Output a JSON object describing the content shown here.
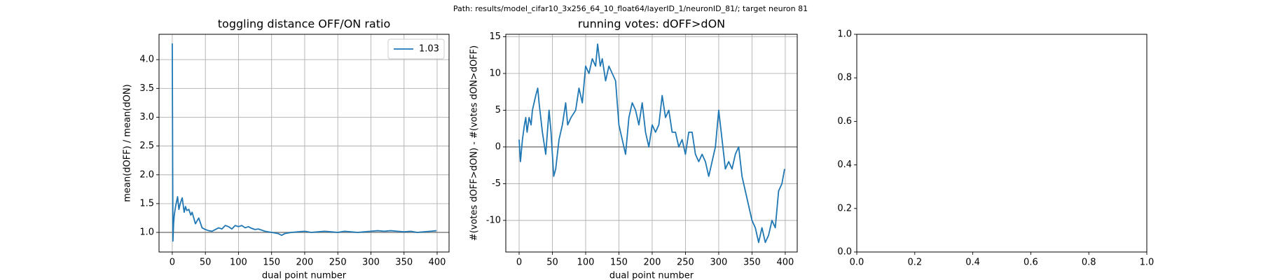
{
  "figure_title": "Path: results/model_cifar10_3x256_64_10_float64/layerID_1/neuronID_81/; target neuron 81",
  "chart_data": [
    {
      "type": "line",
      "title": "toggling distance OFF/ON ratio",
      "xlabel": "dual point number",
      "ylabel": "mean(dOFF) / mean(dON)",
      "x": [
        0,
        1,
        2,
        3,
        5,
        8,
        10,
        12,
        15,
        18,
        20,
        22,
        25,
        28,
        30,
        35,
        40,
        45,
        50,
        55,
        60,
        65,
        70,
        75,
        80,
        85,
        90,
        95,
        100,
        105,
        110,
        115,
        120,
        125,
        130,
        140,
        150,
        160,
        165,
        170,
        180,
        190,
        200,
        210,
        220,
        230,
        240,
        250,
        260,
        270,
        280,
        290,
        300,
        310,
        320,
        330,
        340,
        350,
        360,
        370,
        380,
        390,
        399
      ],
      "series": [
        {
          "name": "1.03",
          "color": "#1f77b4",
          "values": [
            4.28,
            0.85,
            1.15,
            1.3,
            1.45,
            1.62,
            1.4,
            1.5,
            1.6,
            1.35,
            1.45,
            1.38,
            1.4,
            1.3,
            1.35,
            1.15,
            1.25,
            1.08,
            1.05,
            1.03,
            1.02,
            1.05,
            1.08,
            1.06,
            1.12,
            1.1,
            1.06,
            1.12,
            1.1,
            1.12,
            1.08,
            1.1,
            1.07,
            1.05,
            1.06,
            1.02,
            1.0,
            0.98,
            0.95,
            0.98,
            1.0,
            1.01,
            1.02,
            1.0,
            1.01,
            1.02,
            1.01,
            1.0,
            1.02,
            1.01,
            1.0,
            1.01,
            1.02,
            1.03,
            1.02,
            1.03,
            1.02,
            1.01,
            1.02,
            1.0,
            1.01,
            1.02,
            1.03
          ]
        }
      ],
      "xlim": [
        -20,
        418
      ],
      "ylim": [
        0.66,
        4.44
      ],
      "xticks": [
        0,
        50,
        100,
        150,
        200,
        250,
        300,
        350,
        400
      ],
      "yticks": [
        {
          "value": 1,
          "label": "1.0"
        },
        {
          "value": 1.5,
          "label": "1.5"
        },
        {
          "value": 2,
          "label": "2.0"
        },
        {
          "value": 2.5,
          "label": "2.5"
        },
        {
          "value": 3,
          "label": "3.0"
        },
        {
          "value": 3.5,
          "label": "3.5"
        },
        {
          "value": 4,
          "label": "4.0"
        }
      ],
      "hline": 1,
      "grid": true,
      "legend": "upper right"
    },
    {
      "type": "line",
      "title": "running votes: dOFF>dON",
      "xlabel": "dual point number",
      "ylabel": "#(votes dOFF>dON) - #(votes dON>dOFF)",
      "x": [
        0,
        2,
        5,
        8,
        10,
        12,
        15,
        18,
        20,
        25,
        28,
        30,
        35,
        40,
        45,
        48,
        52,
        55,
        60,
        65,
        70,
        73,
        78,
        85,
        90,
        95,
        100,
        105,
        110,
        115,
        118,
        122,
        125,
        130,
        135,
        140,
        145,
        150,
        155,
        160,
        165,
        170,
        175,
        180,
        185,
        190,
        195,
        200,
        205,
        210,
        215,
        220,
        225,
        230,
        235,
        240,
        245,
        250,
        255,
        260,
        265,
        270,
        275,
        280,
        285,
        290,
        295,
        300,
        305,
        310,
        315,
        320,
        325,
        330,
        335,
        340,
        345,
        350,
        355,
        360,
        365,
        370,
        375,
        380,
        385,
        390,
        395,
        399
      ],
      "series": [
        {
          "name": "votes",
          "color": "#1f77b4",
          "values": [
            1,
            -2,
            1,
            3,
            4,
            2,
            4,
            3,
            5,
            7,
            8,
            6,
            2,
            -1,
            5,
            2,
            -4,
            -3,
            1,
            3,
            6,
            3,
            4,
            5,
            8,
            6,
            11,
            10,
            12,
            11,
            14,
            11,
            12,
            9,
            11,
            10,
            9,
            3,
            1,
            -1,
            4,
            6,
            5,
            3,
            6,
            2,
            0,
            3,
            2,
            3,
            7,
            4,
            5,
            2,
            2,
            0,
            1,
            -1,
            2,
            2,
            -1,
            -2,
            -1,
            -2,
            -4,
            -2,
            0,
            5,
            1,
            -3,
            -2,
            -3,
            -1,
            0,
            -4,
            -6,
            -8,
            -10,
            -11,
            -13,
            -11,
            -13,
            -12,
            -10,
            -11,
            -6,
            -5,
            -3
          ]
        }
      ],
      "xlim": [
        -20,
        418
      ],
      "ylim": [
        -14.3,
        15.33
      ],
      "xticks": [
        0,
        50,
        100,
        150,
        200,
        250,
        300,
        350,
        400
      ],
      "yticks": [
        -10,
        -5,
        0,
        5,
        10,
        15
      ],
      "hline": 0,
      "grid": true
    },
    {
      "type": "empty",
      "xlim": [
        0,
        1
      ],
      "ylim": [
        0,
        1
      ],
      "xticks": [
        {
          "value": 0,
          "label": "0.0"
        },
        {
          "value": 0.2,
          "label": "0.2"
        },
        {
          "value": 0.4,
          "label": "0.4"
        },
        {
          "value": 0.6,
          "label": "0.6"
        },
        {
          "value": 0.8,
          "label": "0.8"
        },
        {
          "value": 1,
          "label": "1.0"
        }
      ],
      "yticks": [
        {
          "value": 0,
          "label": "0.0"
        },
        {
          "value": 0.2,
          "label": "0.2"
        },
        {
          "value": 0.4,
          "label": "0.4"
        },
        {
          "value": 0.6,
          "label": "0.6"
        },
        {
          "value": 0.8,
          "label": "0.8"
        },
        {
          "value": 1,
          "label": "1.0"
        }
      ],
      "grid": false
    }
  ]
}
